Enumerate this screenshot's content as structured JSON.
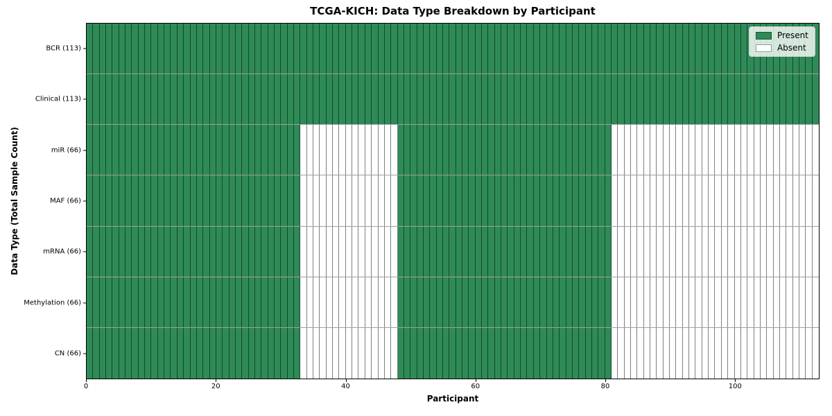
{
  "chart_data": {
    "type": "heatmap",
    "title": "TCGA-KICH: Data Type Breakdown by Participant",
    "xlabel": "Participant",
    "ylabel": "Data Type (Total Sample Count)",
    "n_participants": 113,
    "x_ticks": [
      0,
      20,
      40,
      60,
      80,
      100
    ],
    "grid": "cell-borders",
    "legend_position": "upper right",
    "colors": {
      "present": "#2e8b57",
      "absent": "#ffffff"
    },
    "legend": [
      {
        "label": "Present",
        "state": "present"
      },
      {
        "label": "Absent",
        "state": "absent"
      }
    ],
    "rows": [
      {
        "label": "BCR (113)",
        "data_type": "BCR",
        "total_samples": 113,
        "segments": [
          {
            "from": 0,
            "to": 113,
            "state": "present"
          }
        ]
      },
      {
        "label": "Clinical (113)",
        "data_type": "Clinical",
        "total_samples": 113,
        "segments": [
          {
            "from": 0,
            "to": 113,
            "state": "present"
          }
        ]
      },
      {
        "label": "miR (66)",
        "data_type": "miR",
        "total_samples": 66,
        "segments": [
          {
            "from": 0,
            "to": 33,
            "state": "present"
          },
          {
            "from": 33,
            "to": 48,
            "state": "absent"
          },
          {
            "from": 48,
            "to": 81,
            "state": "present"
          },
          {
            "from": 81,
            "to": 113,
            "state": "absent"
          }
        ]
      },
      {
        "label": "MAF (66)",
        "data_type": "MAF",
        "total_samples": 66,
        "segments": [
          {
            "from": 0,
            "to": 33,
            "state": "present"
          },
          {
            "from": 33,
            "to": 48,
            "state": "absent"
          },
          {
            "from": 48,
            "to": 81,
            "state": "present"
          },
          {
            "from": 81,
            "to": 113,
            "state": "absent"
          }
        ]
      },
      {
        "label": "mRNA (66)",
        "data_type": "mRNA",
        "total_samples": 66,
        "segments": [
          {
            "from": 0,
            "to": 33,
            "state": "present"
          },
          {
            "from": 33,
            "to": 48,
            "state": "absent"
          },
          {
            "from": 48,
            "to": 81,
            "state": "present"
          },
          {
            "from": 81,
            "to": 113,
            "state": "absent"
          }
        ]
      },
      {
        "label": "Methylation (66)",
        "data_type": "Methylation",
        "total_samples": 66,
        "segments": [
          {
            "from": 0,
            "to": 33,
            "state": "present"
          },
          {
            "from": 33,
            "to": 48,
            "state": "absent"
          },
          {
            "from": 48,
            "to": 81,
            "state": "present"
          },
          {
            "from": 81,
            "to": 113,
            "state": "absent"
          }
        ]
      },
      {
        "label": "CN (66)",
        "data_type": "CN",
        "total_samples": 66,
        "segments": [
          {
            "from": 0,
            "to": 33,
            "state": "present"
          },
          {
            "from": 33,
            "to": 48,
            "state": "absent"
          },
          {
            "from": 48,
            "to": 81,
            "state": "present"
          },
          {
            "from": 81,
            "to": 113,
            "state": "absent"
          }
        ]
      }
    ]
  }
}
